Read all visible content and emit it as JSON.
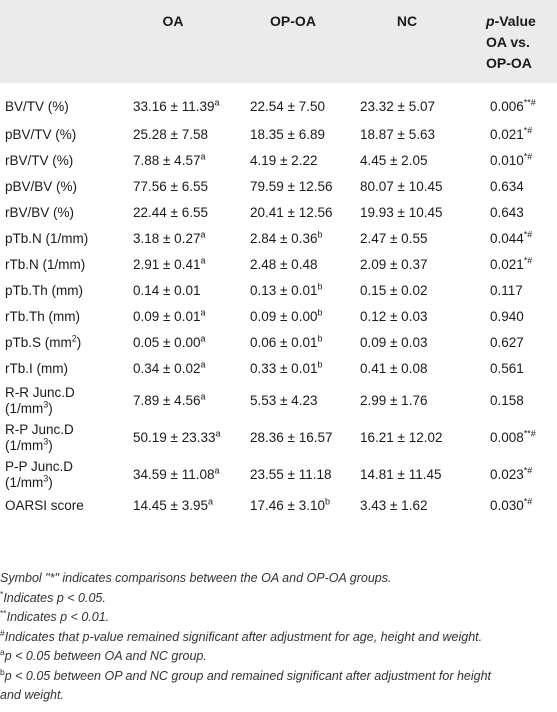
{
  "header": {
    "col0": "",
    "col1": "OA",
    "col2": "OP-OA",
    "col3": "NC",
    "col4_line1": "p-Value",
    "col4_line2": "OA vs.",
    "col4_line3": "OP-OA"
  },
  "rows": [
    {
      "label": "BV/TV (%)",
      "label2": "",
      "oa": "33.16 ± 11.39",
      "oa_sup": "a",
      "opoa": "22.54 ± 7.50",
      "opoa_sup": "",
      "nc": "23.32 ± 5.07",
      "p": "0.006",
      "p_sup": "**#"
    },
    {
      "label": "pBV/TV (%)",
      "label2": "",
      "oa": "25.28 ± 7.58",
      "oa_sup": "",
      "opoa": "18.35 ± 6.89",
      "opoa_sup": "",
      "nc": "18.87 ± 5.63",
      "p": "0.021",
      "p_sup": "*#"
    },
    {
      "label": "rBV/TV (%)",
      "label2": "",
      "oa": "7.88 ± 4.57",
      "oa_sup": "a",
      "opoa": "4.19 ± 2.22",
      "opoa_sup": "",
      "nc": "4.45 ± 2.05",
      "p": "0.010",
      "p_sup": "*#"
    },
    {
      "label": "pBV/BV (%)",
      "label2": "",
      "oa": "77.56 ± 6.55",
      "oa_sup": "",
      "opoa": "79.59 ± 12.56",
      "opoa_sup": "",
      "nc": "80.07 ± 10.45",
      "p": "0.634",
      "p_sup": ""
    },
    {
      "label": "rBV/BV (%)",
      "label2": "",
      "oa": "22.44 ± 6.55",
      "oa_sup": "",
      "opoa": "20.41 ± 12.56",
      "opoa_sup": "",
      "nc": "19.93 ± 10.45",
      "p": "0.643",
      "p_sup": ""
    },
    {
      "label": "pTb.N (1/mm)",
      "label2": "",
      "oa": "3.18 ± 0.27",
      "oa_sup": "a",
      "opoa": "2.84 ± 0.36",
      "opoa_sup": "b",
      "nc": "2.47 ± 0.55",
      "p": "0.044",
      "p_sup": "*#"
    },
    {
      "label": "rTb.N (1/mm)",
      "label2": "",
      "oa": "2.91 ± 0.41",
      "oa_sup": "a",
      "opoa": "2.48 ± 0.48",
      "opoa_sup": "",
      "nc": "2.09 ± 0.37",
      "p": "0.021",
      "p_sup": "*#"
    },
    {
      "label": "pTb.Th (mm)",
      "label2": "",
      "oa": "0.14 ± 0.01",
      "oa_sup": "",
      "opoa": "0.13 ± 0.01",
      "opoa_sup": "b",
      "nc": "0.15 ± 0.02",
      "p": "0.117",
      "p_sup": ""
    },
    {
      "label": "rTb.Th (mm)",
      "label2": "",
      "oa": "0.09 ± 0.01",
      "oa_sup": "a",
      "opoa": "0.09 ± 0.00",
      "opoa_sup": "b",
      "nc": "0.12 ± 0.03",
      "p": "0.940",
      "p_sup": ""
    },
    {
      "label": "pTb.S (mm",
      "label_sup": "2",
      "label_after": ")",
      "label2": "",
      "oa": "0.05 ± 0.00",
      "oa_sup": "a",
      "opoa": "0.06 ± 0.01",
      "opoa_sup": "b",
      "nc": "0.09 ± 0.03",
      "p": "0.627",
      "p_sup": ""
    },
    {
      "label": "rTb.I (mm)",
      "label2": "",
      "oa": "0.34 ± 0.02",
      "oa_sup": "a",
      "opoa": "0.33 ± 0.01",
      "opoa_sup": "b",
      "nc": "0.41 ± 0.08",
      "p": "0.561",
      "p_sup": ""
    },
    {
      "label": "R-R Junc.D",
      "label2": "(1/mm",
      "label2_sup": "3",
      "label2_after": ")",
      "oa": "7.89 ± 4.56",
      "oa_sup": "a",
      "opoa": "5.53 ± 4.23",
      "opoa_sup": "",
      "nc": "2.99 ± 1.76",
      "p": "0.158",
      "p_sup": ""
    },
    {
      "label": "R-P Junc.D",
      "label2": "(1/mm",
      "label2_sup": "3",
      "label2_after": ")",
      "oa": "50.19 ± 23.33",
      "oa_sup": "a",
      "opoa": "28.36 ± 16.57",
      "opoa_sup": "",
      "nc": "16.21 ± 12.02",
      "p": "0.008",
      "p_sup": "**#"
    },
    {
      "label": "P-P Junc.D",
      "label2": "(1/mm",
      "label2_sup": "3",
      "label2_after": ")",
      "oa": "34.59 ± 11.08",
      "oa_sup": "a",
      "opoa": "23.55 ± 11.18",
      "opoa_sup": "",
      "nc": "14.81 ± 11.45",
      "p": "0.023",
      "p_sup": "*#"
    },
    {
      "label": "OARSI score",
      "label2": "",
      "oa": "14.45 ± 3.95",
      "oa_sup": "a",
      "opoa": "17.46 ± 3.10",
      "opoa_sup": "b",
      "nc": "3.43 ± 1.62",
      "p": "0.030",
      "p_sup": "*#"
    }
  ],
  "notes": {
    "n1": "Symbol \"*\" indicates comparisons between the OA and OP-OA groups.",
    "n2_sup": "*",
    "n2": "Indicates p < 0.05.",
    "n3_sup": "**",
    "n3": "Indicates p < 0.01.",
    "n4_sup": "#",
    "n4": "Indicates that p-value remained significant after adjustment for age, height and weight.",
    "n5_sup": "a",
    "n5": "p < 0.05 between OA and NC group.",
    "n6_sup": "b",
    "n6_line1": "p < 0.05 between OP and NC group and remained significant after adjustment for height",
    "n6_line2": "and weight."
  }
}
